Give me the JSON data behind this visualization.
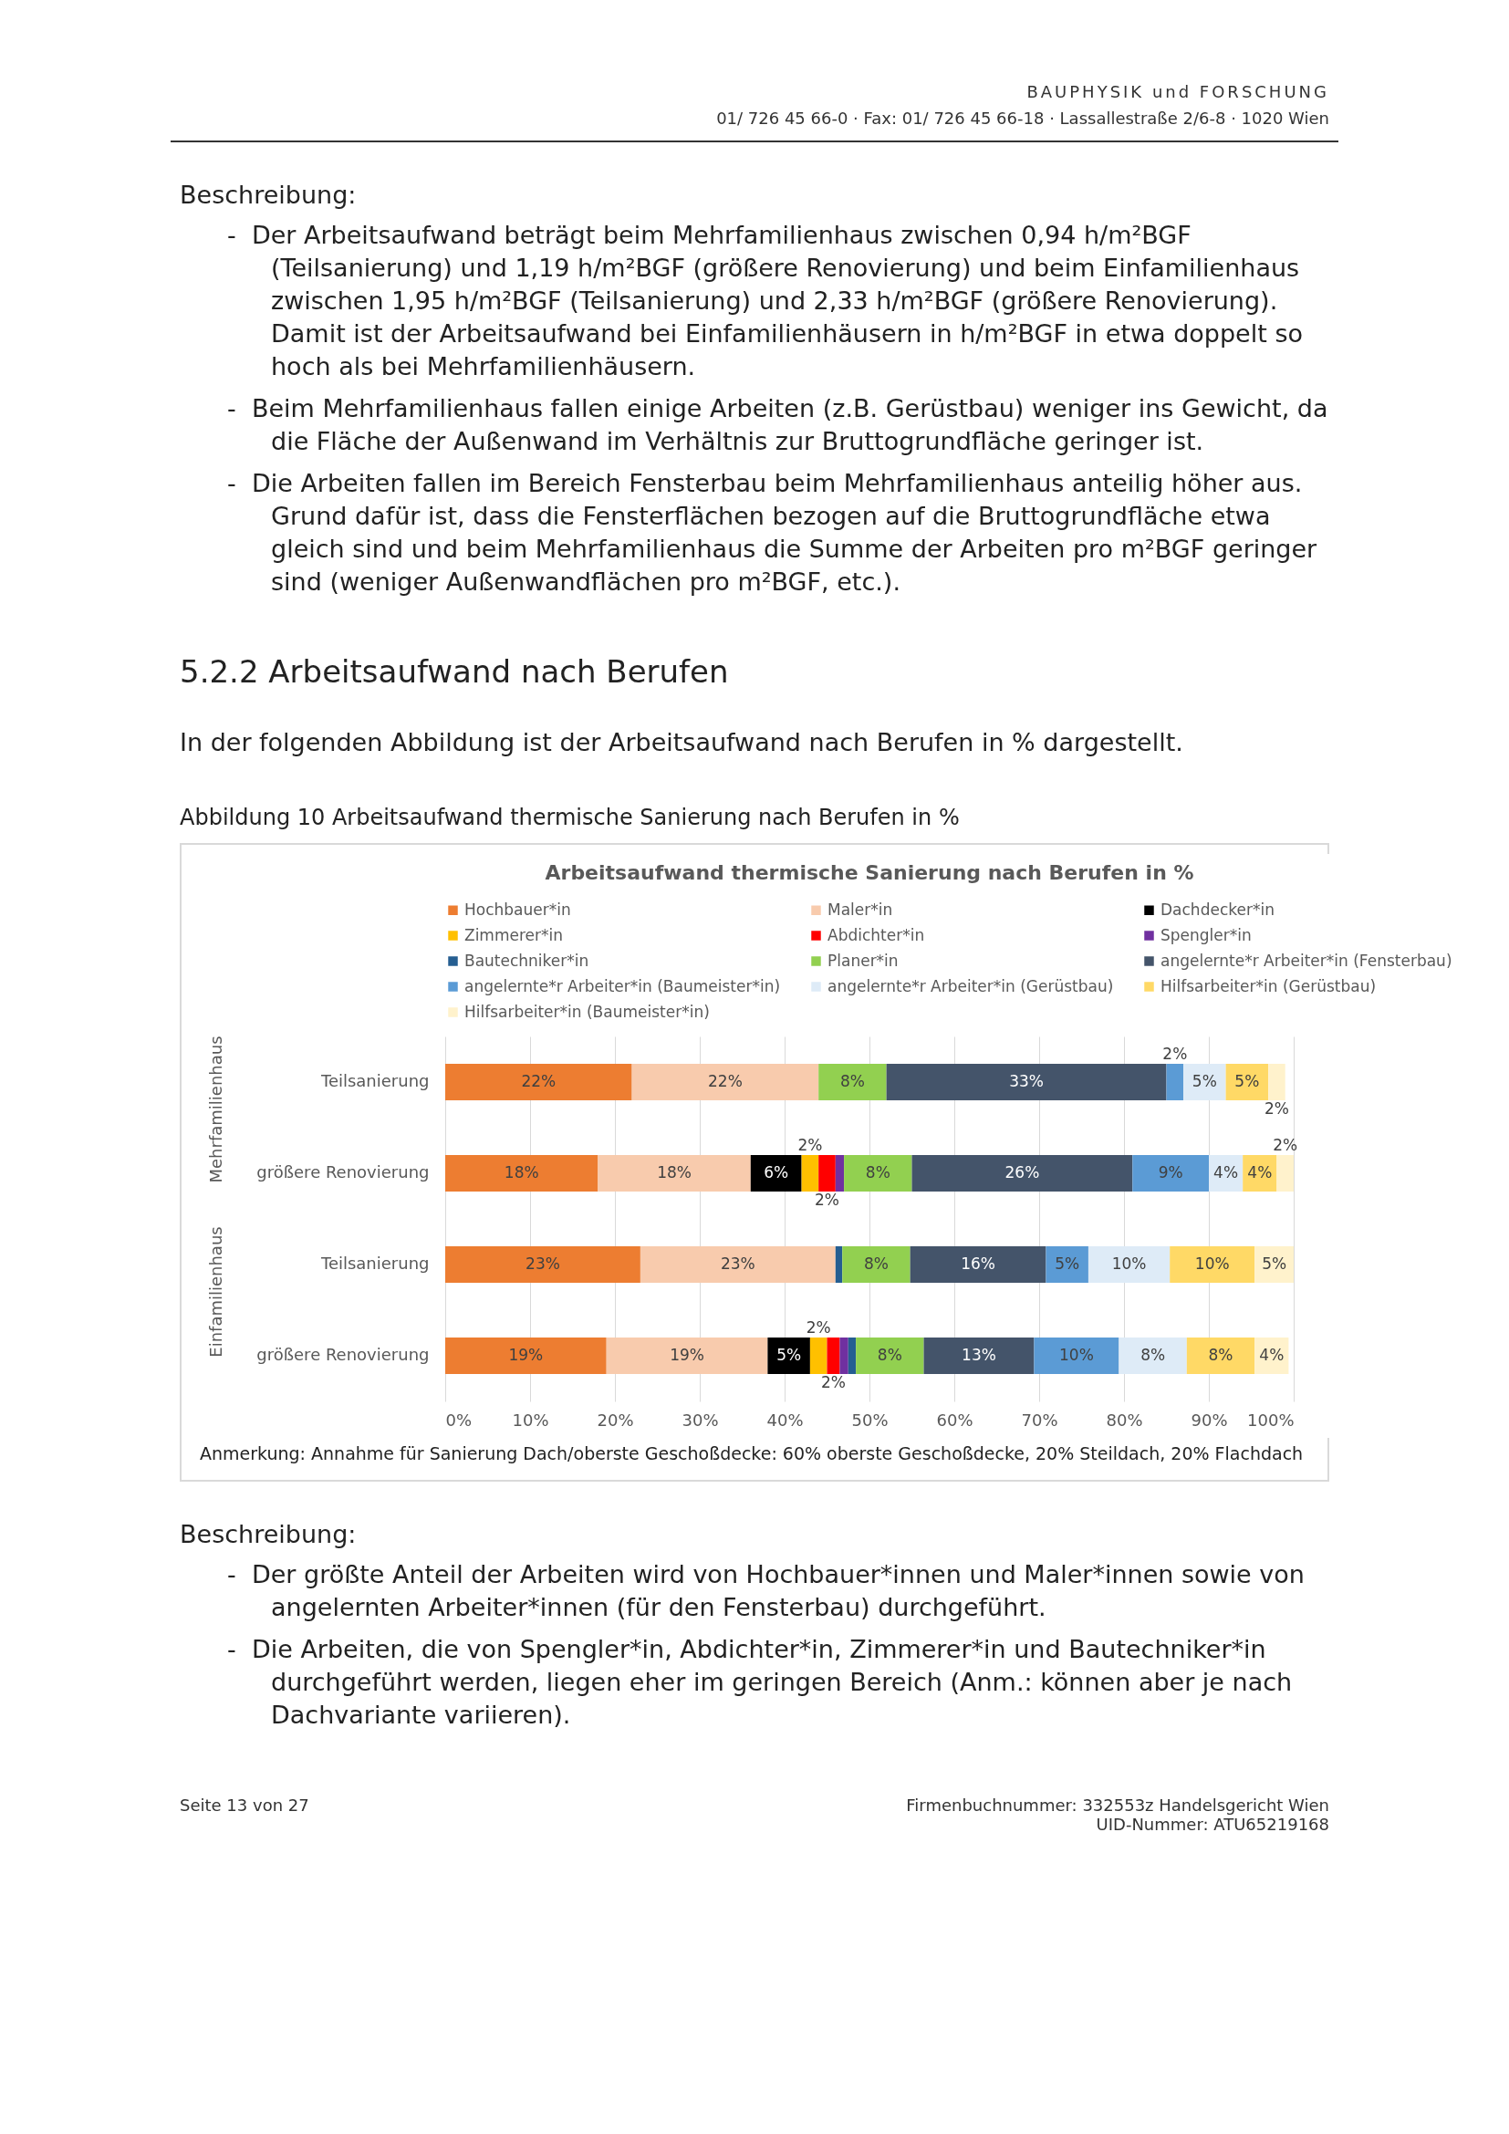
{
  "chart_data": {
    "type": "bar",
    "orientation": "horizontal",
    "stacked": true,
    "title": "Arbeitsaufwand thermische Sanierung nach Berufen in %",
    "categories": [
      "Teilsanierung",
      "größere Renovierung",
      "Teilsanierung",
      "größere Renovierung"
    ],
    "series": [
      {
        "name": "Hochbauer*in",
        "color": "#ed7d31",
        "values": [
          22,
          18,
          23,
          19
        ],
        "value_labels": [
          "22%",
          "18%",
          "23%",
          "19%"
        ]
      },
      {
        "name": "Maler*in",
        "color": "#f8cbad",
        "values": [
          22,
          18,
          23,
          19
        ],
        "value_labels": [
          "22%",
          "18%",
          "23%",
          "19%"
        ]
      },
      {
        "name": "Dachdecker*in",
        "color": "#000000",
        "values": [
          null,
          6,
          null,
          5
        ],
        "value_labels": [
          null,
          "6%",
          null,
          "5%"
        ]
      },
      {
        "name": "Zimmerer*in",
        "color": "#ffc000",
        "values": [
          null,
          2,
          null,
          2
        ],
        "value_labels": [
          null,
          "2%",
          null,
          "2%"
        ]
      },
      {
        "name": "Abdichter*in",
        "color": "#ff0000",
        "values": [
          null,
          2,
          null,
          1.5
        ],
        "value_labels": [
          null,
          "2%",
          null,
          "2%"
        ]
      },
      {
        "name": "Spengler*in",
        "color": "#7030a0",
        "values": [
          null,
          1,
          null,
          1
        ],
        "value_labels": [
          null,
          null,
          null,
          null
        ]
      },
      {
        "name": "Bautechniker*in",
        "color": "#255e91",
        "values": [
          null,
          null,
          0.8,
          0.9
        ],
        "value_labels": [
          null,
          null,
          null,
          null
        ]
      },
      {
        "name": "Planer*in",
        "color": "#92d050",
        "values": [
          8,
          8,
          8,
          8
        ],
        "value_labels": [
          "8%",
          "8%",
          "8%",
          "8%"
        ]
      },
      {
        "name": "angelernte*r Arbeiter*in (Fensterbau)",
        "color": "#44546a",
        "values": [
          33,
          26,
          16,
          13
        ],
        "value_labels": [
          "33%",
          "26%",
          "16%",
          "13%"
        ]
      },
      {
        "name": "angelernte*r Arbeiter*in (Baumeister*in)",
        "color": "#5b9bd5",
        "values": [
          2,
          9,
          5,
          10
        ],
        "value_labels": [
          "2%",
          "9%",
          "5%",
          "10%"
        ]
      },
      {
        "name": "angelernte*r Arbeiter*in (Gerüstbau)",
        "color": "#deebf7",
        "values": [
          5,
          4,
          9.6,
          8
        ],
        "value_labels": [
          "5%",
          "4%",
          "10%",
          "8%"
        ]
      },
      {
        "name": "Hilfsarbeiter*in (Gerüstbau)",
        "color": "#ffd966",
        "values": [
          5,
          4,
          10,
          8
        ],
        "value_labels": [
          "5%",
          "4%",
          "10%",
          "8%"
        ]
      },
      {
        "name": "Hilfsarbeiter*in (Baumeister*in)",
        "color": "#fff2cc",
        "values": [
          2,
          2,
          4.6,
          4
        ],
        "value_labels": [
          "2%",
          "2%",
          "5%",
          "4%"
        ]
      }
    ],
    "xlim": [
      0,
      100
    ],
    "xticks": [
      {
        "value": 0,
        "label": "0%"
      },
      {
        "value": 10,
        "label": "10%"
      },
      {
        "value": 20,
        "label": "20%"
      },
      {
        "value": 30,
        "label": "30%"
      },
      {
        "value": 40,
        "label": "40%"
      },
      {
        "value": 50,
        "label": "50%"
      },
      {
        "value": 60,
        "label": "60%"
      },
      {
        "value": 70,
        "label": "70%"
      },
      {
        "value": 80,
        "label": "80%"
      },
      {
        "value": 90,
        "label": "90%"
      },
      {
        "value": 100,
        "label": "100%"
      }
    ],
    "grid": "x",
    "legend": "top",
    "annotations": [
      "BAUPHYSIK und FORSCHUNG",
      "01/ 726 45 66-0 · Fax: 01/ 726 45 66-18 · Lassallestraße 2/6-8 · 1020 Wien",
      "Beschreibung:",
      "-  Der Arbeitsaufwand beträgt beim Mehrfamilienhaus zwischen 0,94 h/m²BGF (Teilsanierung) und 1,19 h/m²BGF (größere Renovierung) und beim Einfamilienhaus zwischen 1,95 h/m²BGF (Teilsanierung) und 2,33 h/m²BGF (größere Renovierung). Damit ist der Arbeitsaufwand bei Einfamilienhäusern in h/m²BGF in etwa doppelt so hoch als bei Mehrfamilienhäusern.",
      "-  Beim Mehrfamilienhaus fallen einige Arbeiten (z.B. Gerüstbau) weniger ins Gewicht, da die Fläche der Außenwand im Verhältnis zur Bruttogrundfläche geringer ist.",
      "-  Die Arbeiten fallen im Bereich Fensterbau beim Mehrfamilienhaus anteilig höher aus. Grund dafür ist, dass die Fensterflächen bezogen auf die Bruttogrundfläche etwa gleich sind und beim Mehrfamilienhaus die Summe der Arbeiten pro m²BGF geringer sind (weniger Außenwandflächen pro m²BGF, etc.).",
      "5.2.2 Arbeitsaufwand nach Berufen",
      "In der folgenden Abbildung ist der Arbeitsaufwand nach Berufen in % dargestellt.",
      "Abbildung 10 Arbeitsaufwand thermische Sanierung nach Berufen in %",
      "Mehrfamilienhaus",
      "Einfamilienhaus",
      "Anmerkung: Annahme für Sanierung Dach/oberste Geschoßdecke: 60% oberste Geschoßdecke, 20% Steildach, 20% Flachdach",
      "Beschreibung:",
      "-  Der größte Anteil der Arbeiten wird von Hochbauer*innen und Maler*innen sowie von angelernten Arbeiter*innen (für den Fensterbau) durchgeführt.",
      "-  Die Arbeiten, die von Spengler*in, Abdichter*in, Zimmerer*in und Bautechniker*in durchgeführt werden, liegen eher im geringen Bereich (Anm.: können aber je nach Dachvariante variieren).",
      "Seite 13 von 27",
      "Firmenbuchnummer: 332553z Handelsgericht Wien",
      "UID-Nummer: ATU65219168"
    ]
  }
}
